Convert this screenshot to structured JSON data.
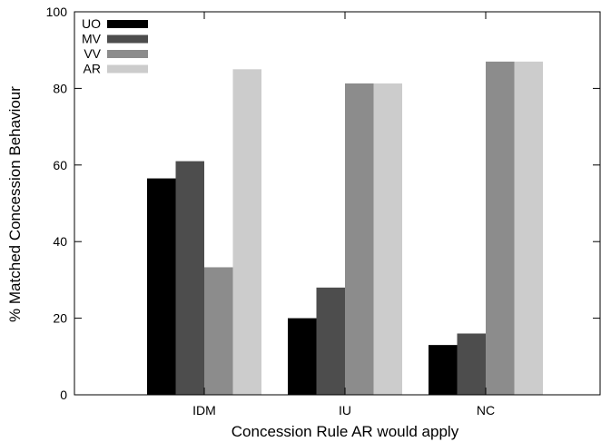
{
  "chart_data": {
    "type": "bar",
    "title": "",
    "xlabel": "Concession Rule AR would apply",
    "ylabel": "% Matched Concession Behaviour",
    "ylim": [
      0,
      100
    ],
    "yticks": [
      0,
      20,
      40,
      60,
      80,
      100
    ],
    "categories": [
      "IDM",
      "IU",
      "NC"
    ],
    "series": [
      {
        "name": "UO",
        "color": "#000000",
        "values": [
          56.5,
          20,
          13
        ]
      },
      {
        "name": "MV",
        "color": "#4d4d4d",
        "values": [
          61,
          28,
          16
        ]
      },
      {
        "name": "VV",
        "color": "#8c8c8c",
        "values": [
          33.3,
          81.3,
          87
        ]
      },
      {
        "name": "AR",
        "color": "#cccccc",
        "values": [
          85,
          81.3,
          87
        ]
      }
    ],
    "grid": false,
    "legend_position": "top-left"
  }
}
